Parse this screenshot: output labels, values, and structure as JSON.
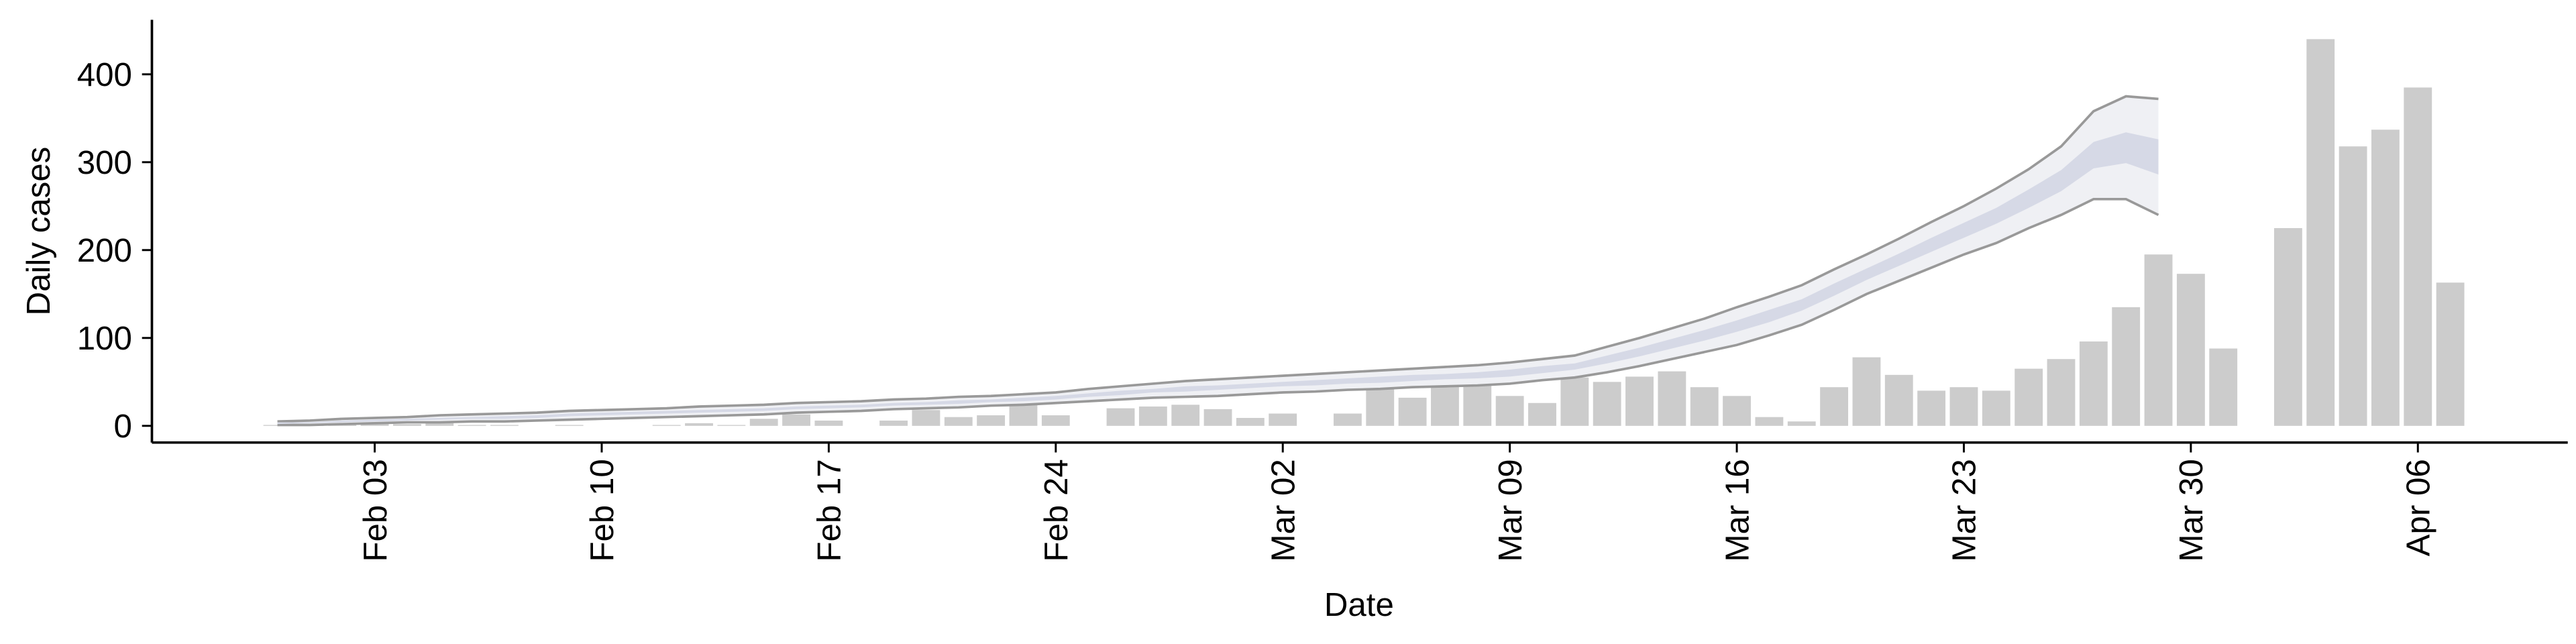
{
  "chart_data": {
    "type": "bar",
    "x_label": "Date",
    "y_label": "Daily cases",
    "categories": [
      null,
      null,
      null,
      "Feb 03",
      null,
      null,
      null,
      null,
      null,
      null,
      "Feb 10",
      null,
      null,
      null,
      null,
      null,
      null,
      "Feb 17",
      null,
      null,
      null,
      null,
      null,
      null,
      "Feb 24",
      null,
      null,
      null,
      null,
      null,
      null,
      "Mar 02",
      null,
      null,
      null,
      null,
      null,
      null,
      "Mar 09",
      null,
      null,
      null,
      null,
      null,
      null,
      "Mar 16",
      null,
      null,
      null,
      null,
      null,
      null,
      "Mar 23",
      null,
      null,
      null,
      null,
      null,
      null,
      "Mar 30",
      null,
      null,
      null,
      null,
      null,
      null,
      "Apr 06",
      null
    ],
    "values": [
      1,
      1,
      2,
      3,
      2,
      3,
      1,
      1,
      0,
      1,
      0,
      0,
      1,
      3,
      1,
      8,
      13,
      6,
      0,
      6,
      18,
      10,
      12,
      28,
      12,
      0,
      20,
      22,
      24,
      19,
      9,
      14,
      0,
      14,
      52,
      32,
      58,
      52,
      34,
      26,
      55,
      50,
      56,
      62,
      44,
      34,
      10,
      5,
      44,
      78,
      58,
      40,
      44,
      40,
      65,
      76,
      96,
      135,
      195,
      173,
      88,
      null,
      225,
      440,
      318,
      337,
      385,
      163
    ],
    "color": "#cccccc",
    "bands": [
      {
        "color": "#eff0f4",
        "line_color": "#999999",
        "lower": [
          1,
          1,
          2,
          3,
          4,
          4,
          5,
          5,
          6,
          7,
          8,
          9,
          10,
          11,
          12,
          13,
          15,
          16,
          17,
          19,
          20,
          21,
          23,
          24,
          26,
          28,
          30,
          32,
          33,
          34,
          36,
          38,
          39,
          41,
          42,
          44,
          45,
          46,
          48,
          52,
          55,
          61,
          68,
          76,
          84,
          92,
          103,
          115,
          132,
          150,
          165,
          180,
          195,
          208,
          225,
          240,
          258,
          258,
          240,
          null,
          null,
          null,
          null,
          null,
          null,
          null,
          null,
          null
        ],
        "upper": [
          5,
          6,
          8,
          9,
          10,
          12,
          13,
          14,
          15,
          17,
          18,
          19,
          20,
          22,
          23,
          24,
          26,
          27,
          28,
          30,
          31,
          33,
          34,
          36,
          38,
          42,
          45,
          48,
          51,
          53,
          55,
          57,
          59,
          61,
          63,
          65,
          67,
          69,
          72,
          76,
          80,
          90,
          100,
          111,
          122,
          135,
          147,
          160,
          178,
          195,
          213,
          232,
          250,
          270,
          292,
          318,
          358,
          375,
          372,
          null,
          null,
          null,
          null,
          null,
          null,
          null,
          null,
          null
        ]
      },
      {
        "color": "#d6d9e6",
        "lower": [
          2,
          3,
          4,
          5,
          6,
          7,
          8,
          8,
          9,
          11,
          12,
          13,
          14,
          15,
          16,
          17,
          19,
          20,
          21,
          23,
          24,
          25,
          27,
          28,
          30,
          33,
          35,
          38,
          39,
          41,
          43,
          45,
          46,
          48,
          49,
          51,
          53,
          54,
          56,
          60,
          64,
          71,
          79,
          88,
          97,
          107,
          118,
          131,
          148,
          166,
          182,
          198,
          214,
          230,
          248,
          267,
          293,
          299,
          286,
          null,
          null,
          null,
          null,
          null,
          null,
          null,
          null,
          null
        ],
        "upper": [
          4,
          4,
          6,
          7,
          8,
          9,
          10,
          11,
          12,
          14,
          15,
          16,
          17,
          18,
          19,
          20,
          22,
          23,
          24,
          26,
          27,
          29,
          30,
          32,
          34,
          37,
          40,
          42,
          45,
          46,
          48,
          50,
          52,
          54,
          56,
          58,
          59,
          61,
          64,
          68,
          71,
          80,
          89,
          99,
          109,
          120,
          132,
          144,
          162,
          179,
          196,
          214,
          231,
          248,
          269,
          291,
          323,
          334,
          326,
          null,
          null,
          null,
          null,
          null,
          null,
          null,
          null,
          null
        ]
      }
    ],
    "ylim": [
      -19,
      462
    ],
    "yticks": [
      0,
      100,
      200,
      300,
      400
    ]
  }
}
